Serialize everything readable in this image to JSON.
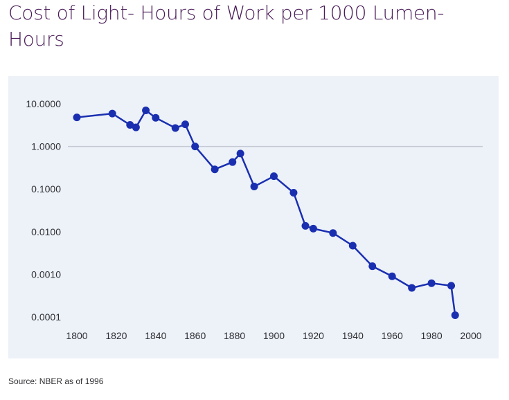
{
  "page": {
    "title": "Cost of Light- Hours of Work per 1000 Lumen-Hours",
    "source": "Source: NBER as of 1996"
  },
  "colors": {
    "title": "#4a1c58",
    "panel_background": "#edf2f9",
    "series": "#1a2fb0",
    "gridline": "#c5c9d4",
    "tick_text": "#2f2f33"
  },
  "chart_data": {
    "type": "line",
    "title": "Cost of Light- Hours of Work per 1000 Lumen-Hours",
    "xlabel": "",
    "ylabel": "",
    "y_scale": "log",
    "xlim": [
      1800,
      2000
    ],
    "ylim": [
      0.0001,
      10
    ],
    "grid": "horizontal line at 1.0000 only",
    "legend": "none",
    "x_ticks": [
      "1800",
      "1820",
      "1840",
      "1860",
      "1880",
      "1900",
      "1920",
      "1940",
      "1960",
      "1980",
      "2000"
    ],
    "x_tick_values": [
      1800,
      1820,
      1840,
      1860,
      1880,
      1900,
      1920,
      1940,
      1960,
      1980,
      2000
    ],
    "y_ticks": [
      "10.0000",
      "1.0000",
      "0.1000",
      "0.0100",
      "0.0010",
      "0.0001"
    ],
    "y_tick_values": [
      10,
      1,
      0.1,
      0.01,
      0.001,
      0.0001
    ],
    "series": [
      {
        "x": [
          1800,
          1818,
          1827,
          1830,
          1835,
          1840,
          1850,
          1855,
          1860,
          1870,
          1879,
          1883,
          1890,
          1900,
          1910,
          1916,
          1920,
          1930,
          1940,
          1950,
          1960,
          1970,
          1980,
          1990,
          1992
        ],
        "values": [
          4.8,
          5.9,
          3.2,
          2.8,
          7.0,
          4.7,
          2.7,
          3.3,
          1.0,
          0.29,
          0.43,
          0.68,
          0.115,
          0.2,
          0.082,
          0.0137,
          0.0118,
          0.0093,
          0.0047,
          0.00155,
          0.0009,
          0.00048,
          0.00062,
          0.00054,
          0.00011
        ]
      }
    ]
  }
}
